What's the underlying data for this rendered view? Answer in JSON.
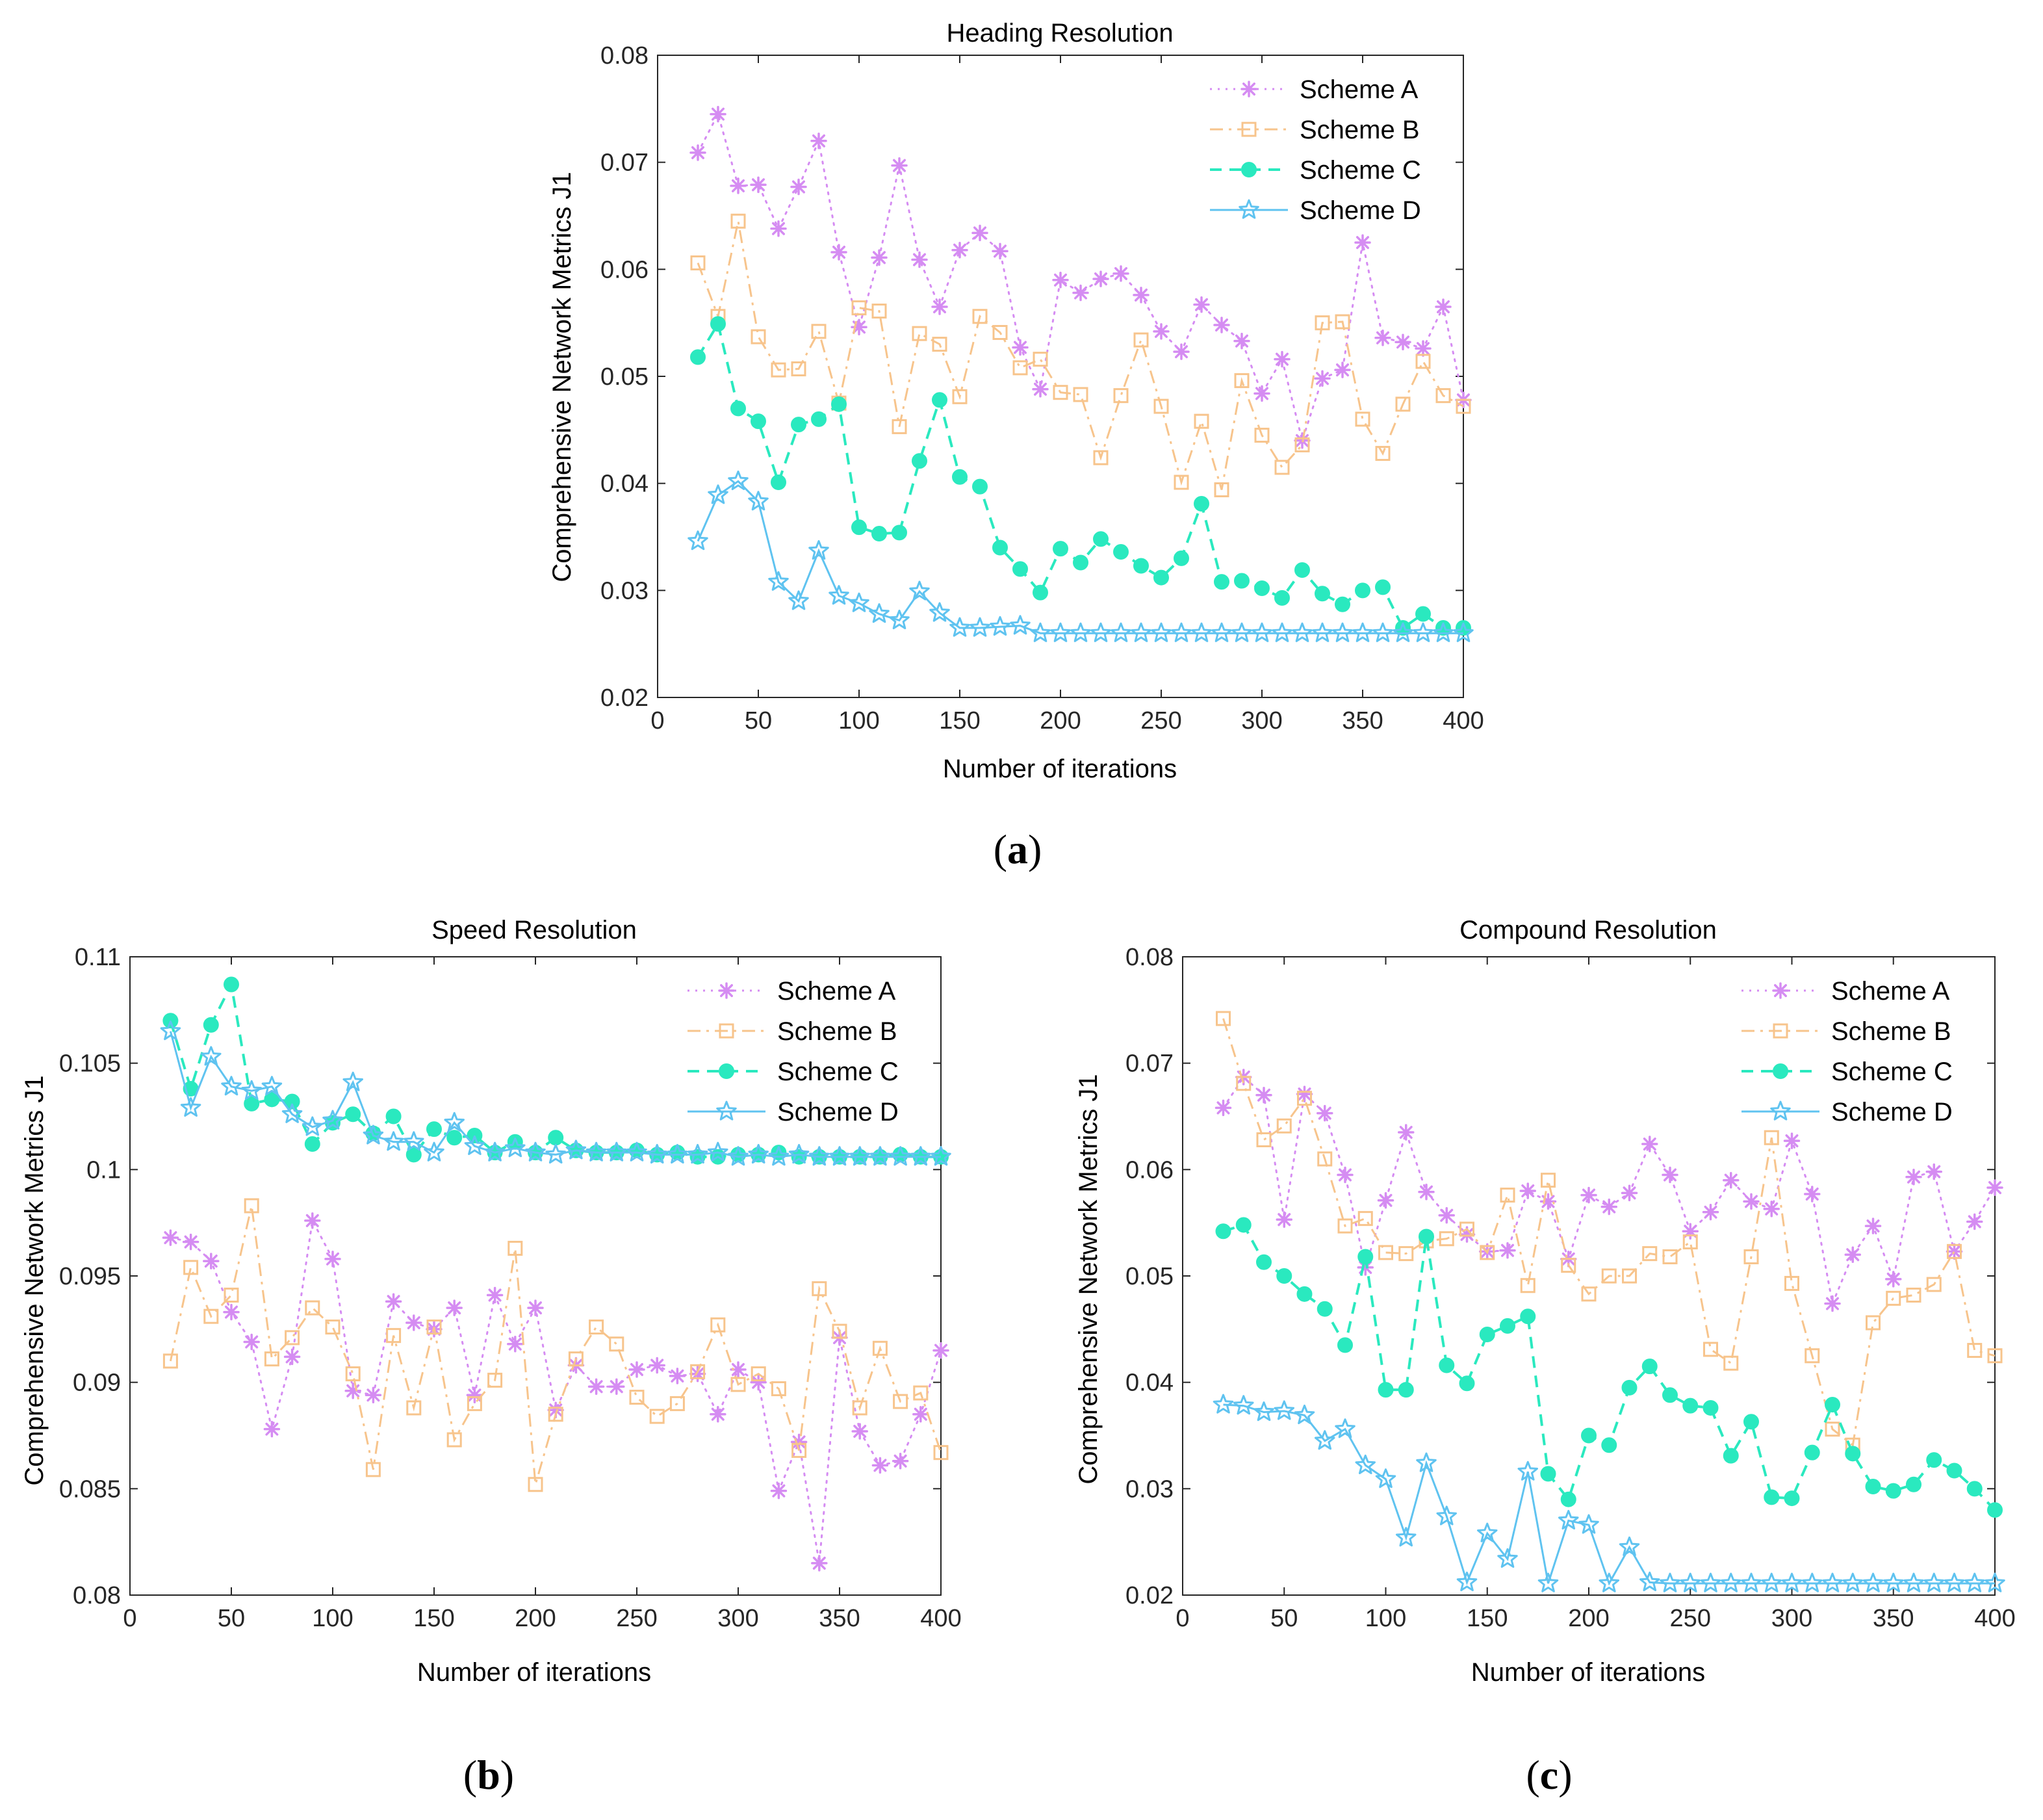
{
  "figure": {
    "panels": [
      {
        "id": "a",
        "label_open": "(",
        "label_letter": "a",
        "label_close": ")"
      },
      {
        "id": "b",
        "label_open": "(",
        "label_letter": "b",
        "label_close": ")"
      },
      {
        "id": "c",
        "label_open": "(",
        "label_letter": "c",
        "label_close": ")"
      }
    ]
  },
  "chart_data": [
    {
      "id": "a",
      "type": "line",
      "title": "Heading Resolution",
      "xlabel": "Number of iterations",
      "ylabel": "Comprehensive Network Metrics J1",
      "xlim": [
        0,
        400
      ],
      "ylim": [
        0.02,
        0.08
      ],
      "xticks": [
        0,
        50,
        100,
        150,
        200,
        250,
        300,
        350,
        400
      ],
      "yticks": [
        0.02,
        0.03,
        0.04,
        0.05,
        0.06,
        0.07,
        0.08
      ],
      "xtick_labels": [
        "0",
        "50",
        "100",
        "150",
        "200",
        "250",
        "300",
        "350",
        "400"
      ],
      "ytick_labels": [
        "0.02",
        "0.03",
        "0.04",
        "0.05",
        "0.06",
        "0.07",
        "0.08"
      ],
      "legend_position": "top-right",
      "grid": false,
      "x": [
        20,
        30,
        40,
        50,
        60,
        70,
        80,
        90,
        100,
        110,
        120,
        130,
        140,
        150,
        160,
        170,
        180,
        190,
        200,
        210,
        220,
        230,
        240,
        250,
        260,
        270,
        280,
        290,
        300,
        310,
        320,
        330,
        340,
        350,
        360,
        370,
        380,
        390,
        400
      ],
      "series": [
        {
          "name": "Scheme A",
          "color": "#d58cf2",
          "marker": "asterisk",
          "dash": "dotted",
          "values": [
            0.0709,
            0.0745,
            0.0678,
            0.0679,
            0.0638,
            0.0677,
            0.072,
            0.0616,
            0.0546,
            0.0611,
            0.0697,
            0.0609,
            0.0565,
            0.0618,
            0.0634,
            0.0617,
            0.0527,
            0.0488,
            0.059,
            0.0578,
            0.0591,
            0.0596,
            0.0576,
            0.0542,
            0.0523,
            0.0567,
            0.0548,
            0.0533,
            0.0484,
            0.0516,
            0.044,
            0.0498,
            0.0506,
            0.0625,
            0.0536,
            0.0532,
            0.0526,
            0.0565,
            0.0478
          ]
        },
        {
          "name": "Scheme B",
          "color": "#f7c48c",
          "marker": "square",
          "dash": "dashdot",
          "values": [
            0.0606,
            0.0556,
            0.0645,
            0.0537,
            0.0506,
            0.0507,
            0.0542,
            0.0475,
            0.0564,
            0.0561,
            0.0453,
            0.054,
            0.053,
            0.0481,
            0.0556,
            0.0541,
            0.0508,
            0.0516,
            0.0485,
            0.0483,
            0.0424,
            0.0482,
            0.0534,
            0.0472,
            0.0401,
            0.0458,
            0.0394,
            0.0496,
            0.0445,
            0.0415,
            0.0436,
            0.055,
            0.0551,
            0.046,
            0.0428,
            0.0474,
            0.0514,
            0.0482,
            0.0472
          ]
        },
        {
          "name": "Scheme C",
          "color": "#2ae9bf",
          "marker": "circle",
          "dash": "dashed",
          "values": [
            0.0518,
            0.0549,
            0.047,
            0.0458,
            0.0401,
            0.0455,
            0.046,
            0.0474,
            0.0359,
            0.0353,
            0.0354,
            0.0421,
            0.0478,
            0.0406,
            0.0397,
            0.034,
            0.032,
            0.0298,
            0.0339,
            0.0326,
            0.0348,
            0.0336,
            0.0323,
            0.0312,
            0.033,
            0.0381,
            0.0308,
            0.0309,
            0.0302,
            0.0293,
            0.0319,
            0.0297,
            0.0287,
            0.03,
            0.0303,
            0.0265,
            0.0278,
            0.0265,
            0.0265
          ]
        },
        {
          "name": "Scheme D",
          "color": "#5fc3f0",
          "marker": "star",
          "dash": "solid",
          "values": [
            0.0346,
            0.0389,
            0.0402,
            0.0383,
            0.0308,
            0.029,
            0.0337,
            0.0295,
            0.0288,
            0.0278,
            0.0272,
            0.0299,
            0.0279,
            0.0265,
            0.0265,
            0.0266,
            0.0267,
            0.026,
            0.026,
            0.026,
            0.026,
            0.026,
            0.026,
            0.026,
            0.026,
            0.026,
            0.026,
            0.026,
            0.026,
            0.026,
            0.026,
            0.026,
            0.026,
            0.026,
            0.026,
            0.026,
            0.026,
            0.026,
            0.026
          ]
        }
      ]
    },
    {
      "id": "b",
      "type": "line",
      "title": "Speed Resolution",
      "xlabel": "Number of iterations",
      "ylabel": "Comprehensive Network Metrics J1",
      "xlim": [
        0,
        400
      ],
      "ylim": [
        0.08,
        0.11
      ],
      "xticks": [
        0,
        50,
        100,
        150,
        200,
        250,
        300,
        350,
        400
      ],
      "yticks": [
        0.08,
        0.085,
        0.09,
        0.095,
        0.1,
        0.105,
        0.11
      ],
      "xtick_labels": [
        "0",
        "50",
        "100",
        "150",
        "200",
        "250",
        "300",
        "350",
        "400"
      ],
      "ytick_labels": [
        "0.08",
        "0.085",
        "0.09",
        "0.095",
        "0.1",
        "0.105",
        "0.11"
      ],
      "legend_position": "top-right",
      "grid": false,
      "x": [
        20,
        30,
        40,
        50,
        60,
        70,
        80,
        90,
        100,
        110,
        120,
        130,
        140,
        150,
        160,
        170,
        180,
        190,
        200,
        210,
        220,
        230,
        240,
        250,
        260,
        270,
        280,
        290,
        300,
        310,
        320,
        330,
        340,
        350,
        360,
        370,
        380,
        390,
        400
      ],
      "series": [
        {
          "name": "Scheme A",
          "color": "#d58cf2",
          "marker": "asterisk",
          "dash": "dotted",
          "values": [
            0.0968,
            0.0966,
            0.0957,
            0.0933,
            0.0919,
            0.0878,
            0.0912,
            0.0976,
            0.0958,
            0.0896,
            0.0894,
            0.0938,
            0.0928,
            0.0925,
            0.0935,
            0.0894,
            0.0941,
            0.0918,
            0.0935,
            0.0887,
            0.0908,
            0.0898,
            0.0898,
            0.0906,
            0.0908,
            0.0903,
            0.0904,
            0.0885,
            0.0906,
            0.09,
            0.0849,
            0.0872,
            0.0815,
            0.0921,
            0.0877,
            0.0861,
            0.0863,
            0.0885,
            0.0915
          ]
        },
        {
          "name": "Scheme B",
          "color": "#f7c48c",
          "marker": "square",
          "dash": "dashdot",
          "values": [
            0.091,
            0.0954,
            0.0931,
            0.0941,
            0.0983,
            0.0911,
            0.0921,
            0.0935,
            0.0926,
            0.0904,
            0.0859,
            0.0922,
            0.0888,
            0.0926,
            0.0873,
            0.089,
            0.0901,
            0.0963,
            0.0852,
            0.0885,
            0.0911,
            0.0926,
            0.0918,
            0.0893,
            0.0884,
            0.089,
            0.0905,
            0.0927,
            0.0899,
            0.0904,
            0.0897,
            0.0868,
            0.0944,
            0.0924,
            0.0888,
            0.0916,
            0.0891,
            0.0895,
            0.0867
          ]
        },
        {
          "name": "Scheme C",
          "color": "#2ae9bf",
          "marker": "circle",
          "dash": "dashed",
          "values": [
            0.107,
            0.1038,
            0.1068,
            0.1087,
            0.1031,
            0.1033,
            0.1032,
            0.1012,
            0.1022,
            0.1026,
            0.1017,
            0.1025,
            0.1007,
            0.1019,
            0.1015,
            0.1016,
            0.1008,
            0.1013,
            0.1008,
            0.1015,
            0.1009,
            0.1008,
            0.1008,
            0.1009,
            0.1007,
            0.1008,
            0.1006,
            0.1006,
            0.1007,
            0.1007,
            0.1008,
            0.1006,
            0.1006,
            0.1006,
            0.1006,
            0.1006,
            0.1007,
            0.1006,
            0.1006
          ]
        },
        {
          "name": "Scheme D",
          "color": "#5fc3f0",
          "marker": "star",
          "dash": "solid",
          "values": [
            0.1065,
            0.1029,
            0.1053,
            0.1039,
            0.1037,
            0.1039,
            0.1026,
            0.102,
            0.1023,
            0.1041,
            0.1016,
            0.1013,
            0.1013,
            0.1008,
            0.1022,
            0.1011,
            0.1008,
            0.101,
            0.1008,
            0.1007,
            0.1009,
            0.1008,
            0.1008,
            0.1008,
            0.1007,
            0.1007,
            0.1007,
            0.1008,
            0.1006,
            0.1007,
            0.1006,
            0.1007,
            0.1006,
            0.1006,
            0.1006,
            0.1006,
            0.1006,
            0.1006,
            0.1006
          ]
        }
      ]
    },
    {
      "id": "c",
      "type": "line",
      "title": "Compound Resolution",
      "xlabel": "Number of iterations",
      "ylabel": "Comprehensive Network Metrics J1",
      "xlim": [
        0,
        400
      ],
      "ylim": [
        0.02,
        0.08
      ],
      "xticks": [
        0,
        50,
        100,
        150,
        200,
        250,
        300,
        350,
        400
      ],
      "yticks": [
        0.02,
        0.03,
        0.04,
        0.05,
        0.06,
        0.07,
        0.08
      ],
      "xtick_labels": [
        "0",
        "50",
        "100",
        "150",
        "200",
        "250",
        "300",
        "350",
        "400"
      ],
      "ytick_labels": [
        "0.02",
        "0.03",
        "0.04",
        "0.05",
        "0.06",
        "0.07",
        "0.08"
      ],
      "legend_position": "top-right",
      "grid": false,
      "x": [
        20,
        30,
        40,
        50,
        60,
        70,
        80,
        90,
        100,
        110,
        120,
        130,
        140,
        150,
        160,
        170,
        180,
        190,
        200,
        210,
        220,
        230,
        240,
        250,
        260,
        270,
        280,
        290,
        300,
        310,
        320,
        330,
        340,
        350,
        360,
        370,
        380,
        390,
        400
      ],
      "series": [
        {
          "name": "Scheme A",
          "color": "#d58cf2",
          "marker": "asterisk",
          "dash": "dotted",
          "values": [
            0.0658,
            0.0687,
            0.067,
            0.0553,
            0.0671,
            0.0653,
            0.0595,
            0.0508,
            0.0571,
            0.0635,
            0.0579,
            0.0557,
            0.0539,
            0.0523,
            0.0524,
            0.058,
            0.057,
            0.0516,
            0.0576,
            0.0565,
            0.0578,
            0.0624,
            0.0595,
            0.0542,
            0.056,
            0.059,
            0.057,
            0.0563,
            0.0627,
            0.0577,
            0.0474,
            0.052,
            0.0547,
            0.0497,
            0.0593,
            0.0598,
            0.0523,
            0.0551,
            0.0583
          ]
        },
        {
          "name": "Scheme B",
          "color": "#f7c48c",
          "marker": "square",
          "dash": "dashdot",
          "values": [
            0.0742,
            0.0681,
            0.0628,
            0.0641,
            0.0667,
            0.061,
            0.0547,
            0.0554,
            0.0522,
            0.0521,
            0.0533,
            0.0535,
            0.0544,
            0.0522,
            0.0576,
            0.0491,
            0.059,
            0.051,
            0.0483,
            0.05,
            0.05,
            0.0521,
            0.0518,
            0.0532,
            0.0431,
            0.0418,
            0.0518,
            0.063,
            0.0493,
            0.0425,
            0.0356,
            0.0341,
            0.0456,
            0.0479,
            0.0482,
            0.0492,
            0.0523,
            0.043,
            0.0425
          ]
        },
        {
          "name": "Scheme C",
          "color": "#2ae9bf",
          "marker": "circle",
          "dash": "dashed",
          "values": [
            0.0542,
            0.0548,
            0.0513,
            0.05,
            0.0483,
            0.0469,
            0.0435,
            0.0518,
            0.0393,
            0.0393,
            0.0537,
            0.0416,
            0.0399,
            0.0445,
            0.0453,
            0.0462,
            0.0314,
            0.029,
            0.035,
            0.0341,
            0.0395,
            0.0415,
            0.0388,
            0.0378,
            0.0376,
            0.0331,
            0.0363,
            0.0292,
            0.0291,
            0.0334,
            0.0379,
            0.0333,
            0.0302,
            0.0298,
            0.0304,
            0.0327,
            0.0317,
            0.03,
            0.028
          ]
        },
        {
          "name": "Scheme D",
          "color": "#5fc3f0",
          "marker": "star",
          "dash": "solid",
          "values": [
            0.0379,
            0.0378,
            0.0372,
            0.0373,
            0.0369,
            0.0345,
            0.0356,
            0.0322,
            0.0309,
            0.0254,
            0.0324,
            0.0274,
            0.0212,
            0.0258,
            0.0234,
            0.0316,
            0.0211,
            0.027,
            0.0266,
            0.0211,
            0.0245,
            0.0212,
            0.0211,
            0.0211,
            0.0211,
            0.0211,
            0.0211,
            0.0211,
            0.0211,
            0.0211,
            0.0211,
            0.0211,
            0.0211,
            0.0211,
            0.0211,
            0.0211,
            0.0211,
            0.0211,
            0.0211
          ]
        }
      ]
    }
  ]
}
